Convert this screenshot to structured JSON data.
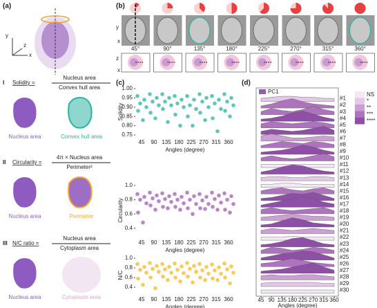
{
  "panels": {
    "a": "(a)",
    "b": "(b)",
    "c": "(c)",
    "d": "(d)"
  },
  "axes_a": [
    "y",
    "z",
    "x"
  ],
  "formulas": [
    {
      "numeral": "I",
      "name": "Solidity =",
      "numerator": "Nucleus area",
      "denominator": "Convex hull area",
      "left_label": "Nucleus area",
      "right_label": "Convex hull area"
    },
    {
      "numeral": "II",
      "name": "Circularity =",
      "numerator": "4π × Nucleus area",
      "denominator": "Perimeter²",
      "left_label": "Nucleus area",
      "right_label": "Perimeter"
    },
    {
      "numeral": "III",
      "name": "N/C ratio =",
      "numerator": "Nucleus area",
      "denominator": "Cytoplasm area",
      "left_label": "Nucleus area",
      "right_label": "Cytoplasm area"
    }
  ],
  "b": {
    "axes_top": [
      "y",
      "x"
    ],
    "axes_bottom": [
      "z",
      "x"
    ],
    "angles": [
      "45°",
      "90°",
      "135°",
      "180°",
      "225°",
      "270°",
      "315°",
      "360°"
    ]
  },
  "chart_data": [
    {
      "type": "strip",
      "ylabel": "Solidity",
      "xlabel": "Angles (degree)",
      "color": "#2bb3a3",
      "categories": [
        "45",
        "90",
        "135",
        "180",
        "225",
        "270",
        "315",
        "360"
      ],
      "values": [
        [
          0.96,
          0.94,
          0.92,
          0.9,
          0.88,
          0.83
        ],
        [
          0.97,
          0.95,
          0.93,
          0.91,
          0.87,
          0.84
        ],
        [
          0.97,
          0.95,
          0.93,
          0.91,
          0.89,
          0.82
        ],
        [
          0.96,
          0.94,
          0.92,
          0.9,
          0.86,
          0.8
        ],
        [
          0.96,
          0.94,
          0.91,
          0.89,
          0.85,
          0.8
        ],
        [
          0.97,
          0.95,
          0.93,
          0.9,
          0.87,
          0.83
        ],
        [
          0.96,
          0.94,
          0.92,
          0.89,
          0.84,
          0.77
        ],
        [
          0.97,
          0.95,
          0.93,
          0.91,
          0.88,
          0.85
        ]
      ],
      "ylim": [
        0.75,
        1.0
      ],
      "yticks": [
        {
          "value": 0.75,
          "label": "0.75"
        },
        {
          "value": 0.8,
          "label": "0.80"
        },
        {
          "value": 0.85,
          "label": "0.85"
        },
        {
          "value": 0.9,
          "label": "0.90"
        },
        {
          "value": 0.95,
          "label": "0.95"
        },
        {
          "value": 1.0,
          "label": "1.00"
        }
      ]
    },
    {
      "type": "strip",
      "ylabel": "Circularity",
      "xlabel": "Angles (degree)",
      "color": "#a35cb5",
      "categories": [
        "45",
        "90",
        "135",
        "180",
        "225",
        "270",
        "315",
        "360"
      ],
      "values": [
        [
          0.88,
          0.84,
          0.8,
          0.75,
          0.62,
          0.48
        ],
        [
          0.9,
          0.86,
          0.82,
          0.78,
          0.72,
          0.66
        ],
        [
          0.89,
          0.85,
          0.81,
          0.77,
          0.7,
          0.68
        ],
        [
          0.88,
          0.84,
          0.8,
          0.75,
          0.7,
          0.66
        ],
        [
          0.9,
          0.85,
          0.8,
          0.74,
          0.68,
          0.6
        ],
        [
          0.88,
          0.84,
          0.79,
          0.74,
          0.68,
          0.67
        ],
        [
          0.9,
          0.86,
          0.81,
          0.76,
          0.7,
          0.66
        ],
        [
          0.89,
          0.85,
          0.8,
          0.74,
          0.66,
          0.62
        ]
      ],
      "ylim": [
        0.3,
        1.0
      ],
      "yticks": [
        0.4,
        0.6,
        0.8,
        {
          "value": 1.0,
          "label": "1.0"
        }
      ]
    },
    {
      "type": "strip",
      "ylabel": "N/C",
      "xlabel": "Angles (degree)",
      "color": "#f5b820",
      "categories": [
        "45",
        "90",
        "135",
        "180",
        "225",
        "270",
        "315",
        "360"
      ],
      "values": [
        [
          0.88,
          0.82,
          0.76,
          0.7,
          0.58,
          0.45
        ],
        [
          0.9,
          0.84,
          0.78,
          0.72,
          0.6,
          0.38
        ],
        [
          0.88,
          0.82,
          0.77,
          0.7,
          0.62,
          0.55
        ],
        [
          0.89,
          0.83,
          0.76,
          0.69,
          0.6,
          0.52
        ],
        [
          0.9,
          0.84,
          0.78,
          0.72,
          0.62,
          0.5
        ],
        [
          0.88,
          0.82,
          0.75,
          0.68,
          0.6,
          0.55
        ],
        [
          0.87,
          0.81,
          0.75,
          0.68,
          0.58,
          0.55
        ],
        [
          0.89,
          0.83,
          0.77,
          0.7,
          0.6,
          0.48
        ]
      ],
      "ylim": [
        0.3,
        1.0
      ],
      "yticks": [
        0.4,
        0.6,
        0.8,
        {
          "value": 1.0,
          "label": "1.0"
        }
      ]
    },
    {
      "type": "ridge",
      "xlabel": "Angles (degree)",
      "legend_title": "PC1",
      "legend_color": "#9b59b6",
      "levels": [
        {
          "label": "NS",
          "color": "#f4e8f5"
        },
        {
          "label": "*",
          "color": "#e3c8e7"
        },
        {
          "label": "**",
          "color": "#cb9fd3"
        },
        {
          "label": "***",
          "color": "#ad74bd"
        },
        {
          "label": "****",
          "color": "#8e4fa6"
        }
      ],
      "x": [
        45,
        90,
        135,
        180,
        225,
        270,
        315,
        360
      ],
      "xlim": [
        45,
        360
      ],
      "xticks": [
        45,
        90,
        135,
        180,
        225,
        270,
        315,
        360
      ],
      "series": [
        {
          "name": "#1",
          "color": "#e3c8e7",
          "values": [
            0.3,
            0.4,
            0.5,
            0.5,
            0.4,
            0.4,
            0.3,
            0.3
          ]
        },
        {
          "name": "#2",
          "color": "#ad74bd",
          "values": [
            0.2,
            0.4,
            0.7,
            0.9,
            0.6,
            0.4,
            0.3,
            0.2
          ]
        },
        {
          "name": "#3",
          "color": "#ad74bd",
          "values": [
            0.3,
            0.6,
            0.4,
            0.3,
            0.5,
            0.8,
            0.5,
            0.3
          ]
        },
        {
          "name": "#4",
          "color": "#8e4fa6",
          "values": [
            0.2,
            0.3,
            0.5,
            0.8,
            1.0,
            0.7,
            0.4,
            0.2
          ]
        },
        {
          "name": "#5",
          "color": "#ad74bd",
          "values": [
            0.4,
            0.6,
            0.5,
            0.4,
            0.5,
            0.6,
            0.5,
            0.3
          ]
        },
        {
          "name": "#6",
          "color": "#8e4fa6",
          "values": [
            0.3,
            0.5,
            0.4,
            0.3,
            0.4,
            0.6,
            0.8,
            0.4
          ]
        },
        {
          "name": "#7",
          "color": "#cb9fd3",
          "values": [
            0.5,
            0.7,
            0.5,
            0.3,
            0.3,
            0.4,
            0.5,
            0.4
          ]
        },
        {
          "name": "#8",
          "color": "#ad74bd",
          "values": [
            0.2,
            0.4,
            0.6,
            0.5,
            0.4,
            0.6,
            0.5,
            0.3
          ]
        },
        {
          "name": "#9",
          "color": "#8e4fa6",
          "values": [
            0.2,
            0.3,
            0.4,
            0.6,
            0.9,
            0.7,
            0.4,
            0.2
          ]
        },
        {
          "name": "#10",
          "color": "#ad74bd",
          "values": [
            0.3,
            0.5,
            0.3,
            0.2,
            0.3,
            0.5,
            0.7,
            0.4
          ]
        },
        {
          "name": "#11",
          "color": "#f4e8f5",
          "values": [
            0.3,
            0.3,
            0.3,
            0.3,
            0.3,
            0.3,
            0.3,
            0.3
          ]
        },
        {
          "name": "#12",
          "color": "#8e4fa6",
          "values": [
            0.2,
            0.4,
            0.7,
            0.9,
            0.8,
            0.5,
            0.3,
            0.2
          ]
        },
        {
          "name": "#13",
          "color": "#e3c8e7",
          "values": [
            0.3,
            0.4,
            0.4,
            0.3,
            0.3,
            0.4,
            0.4,
            0.3
          ]
        },
        {
          "name": "#14",
          "color": "#f4e8f5",
          "values": [
            0.3,
            0.3,
            0.4,
            0.4,
            0.3,
            0.3,
            0.3,
            0.3
          ]
        },
        {
          "name": "#15",
          "color": "#ad74bd",
          "values": [
            0.3,
            0.5,
            0.6,
            0.4,
            0.3,
            0.5,
            0.6,
            0.3
          ]
        },
        {
          "name": "#16",
          "color": "#8e4fa6",
          "values": [
            0.2,
            0.3,
            0.5,
            0.7,
            0.6,
            0.8,
            0.5,
            0.2
          ]
        },
        {
          "name": "#17",
          "color": "#8e4fa6",
          "values": [
            0.2,
            0.4,
            0.6,
            0.8,
            1.0,
            0.8,
            0.5,
            0.3
          ]
        },
        {
          "name": "#18",
          "color": "#ad74bd",
          "values": [
            0.4,
            0.6,
            0.4,
            0.3,
            0.4,
            0.5,
            0.6,
            0.3
          ]
        },
        {
          "name": "#19",
          "color": "#cb9fd3",
          "values": [
            0.3,
            0.4,
            0.5,
            0.6,
            0.5,
            0.4,
            0.4,
            0.3
          ]
        },
        {
          "name": "#20",
          "color": "#8e4fa6",
          "values": [
            0.2,
            0.3,
            0.6,
            0.9,
            0.7,
            0.4,
            0.3,
            0.2
          ]
        },
        {
          "name": "#21",
          "color": "#cb9fd3",
          "values": [
            0.3,
            0.5,
            0.4,
            0.3,
            0.4,
            0.5,
            0.4,
            0.3
          ]
        },
        {
          "name": "#22",
          "color": "#f4e8f5",
          "values": [
            0.3,
            0.3,
            0.3,
            0.4,
            0.3,
            0.3,
            0.3,
            0.3
          ]
        },
        {
          "name": "#23",
          "color": "#8e4fa6",
          "values": [
            0.2,
            0.3,
            0.5,
            0.8,
            0.9,
            0.6,
            0.3,
            0.2
          ]
        },
        {
          "name": "#24",
          "color": "#ad74bd",
          "values": [
            0.3,
            0.6,
            0.5,
            0.3,
            0.4,
            0.6,
            0.5,
            0.3
          ]
        },
        {
          "name": "#25",
          "color": "#8e4fa6",
          "values": [
            0.2,
            0.4,
            0.6,
            0.7,
            0.9,
            0.8,
            0.5,
            0.2
          ]
        },
        {
          "name": "#26",
          "color": "#ad74bd",
          "values": [
            0.3,
            0.4,
            0.6,
            0.8,
            0.6,
            0.4,
            0.3,
            0.2
          ]
        },
        {
          "name": "#27",
          "color": "#8e4fa6",
          "values": [
            0.2,
            0.3,
            0.4,
            0.6,
            0.8,
            1.0,
            0.6,
            0.3
          ]
        },
        {
          "name": "#28",
          "color": "#cb9fd3",
          "values": [
            0.4,
            0.5,
            0.4,
            0.4,
            0.5,
            0.5,
            0.4,
            0.3
          ]
        },
        {
          "name": "#29",
          "color": "#e3c8e7",
          "values": [
            0.3,
            0.4,
            0.4,
            0.4,
            0.4,
            0.4,
            0.3,
            0.3
          ]
        },
        {
          "name": "#30",
          "color": "#f4e8f5",
          "values": [
            0.3,
            0.3,
            0.3,
            0.3,
            0.3,
            0.3,
            0.3,
            0.3
          ]
        }
      ]
    }
  ]
}
